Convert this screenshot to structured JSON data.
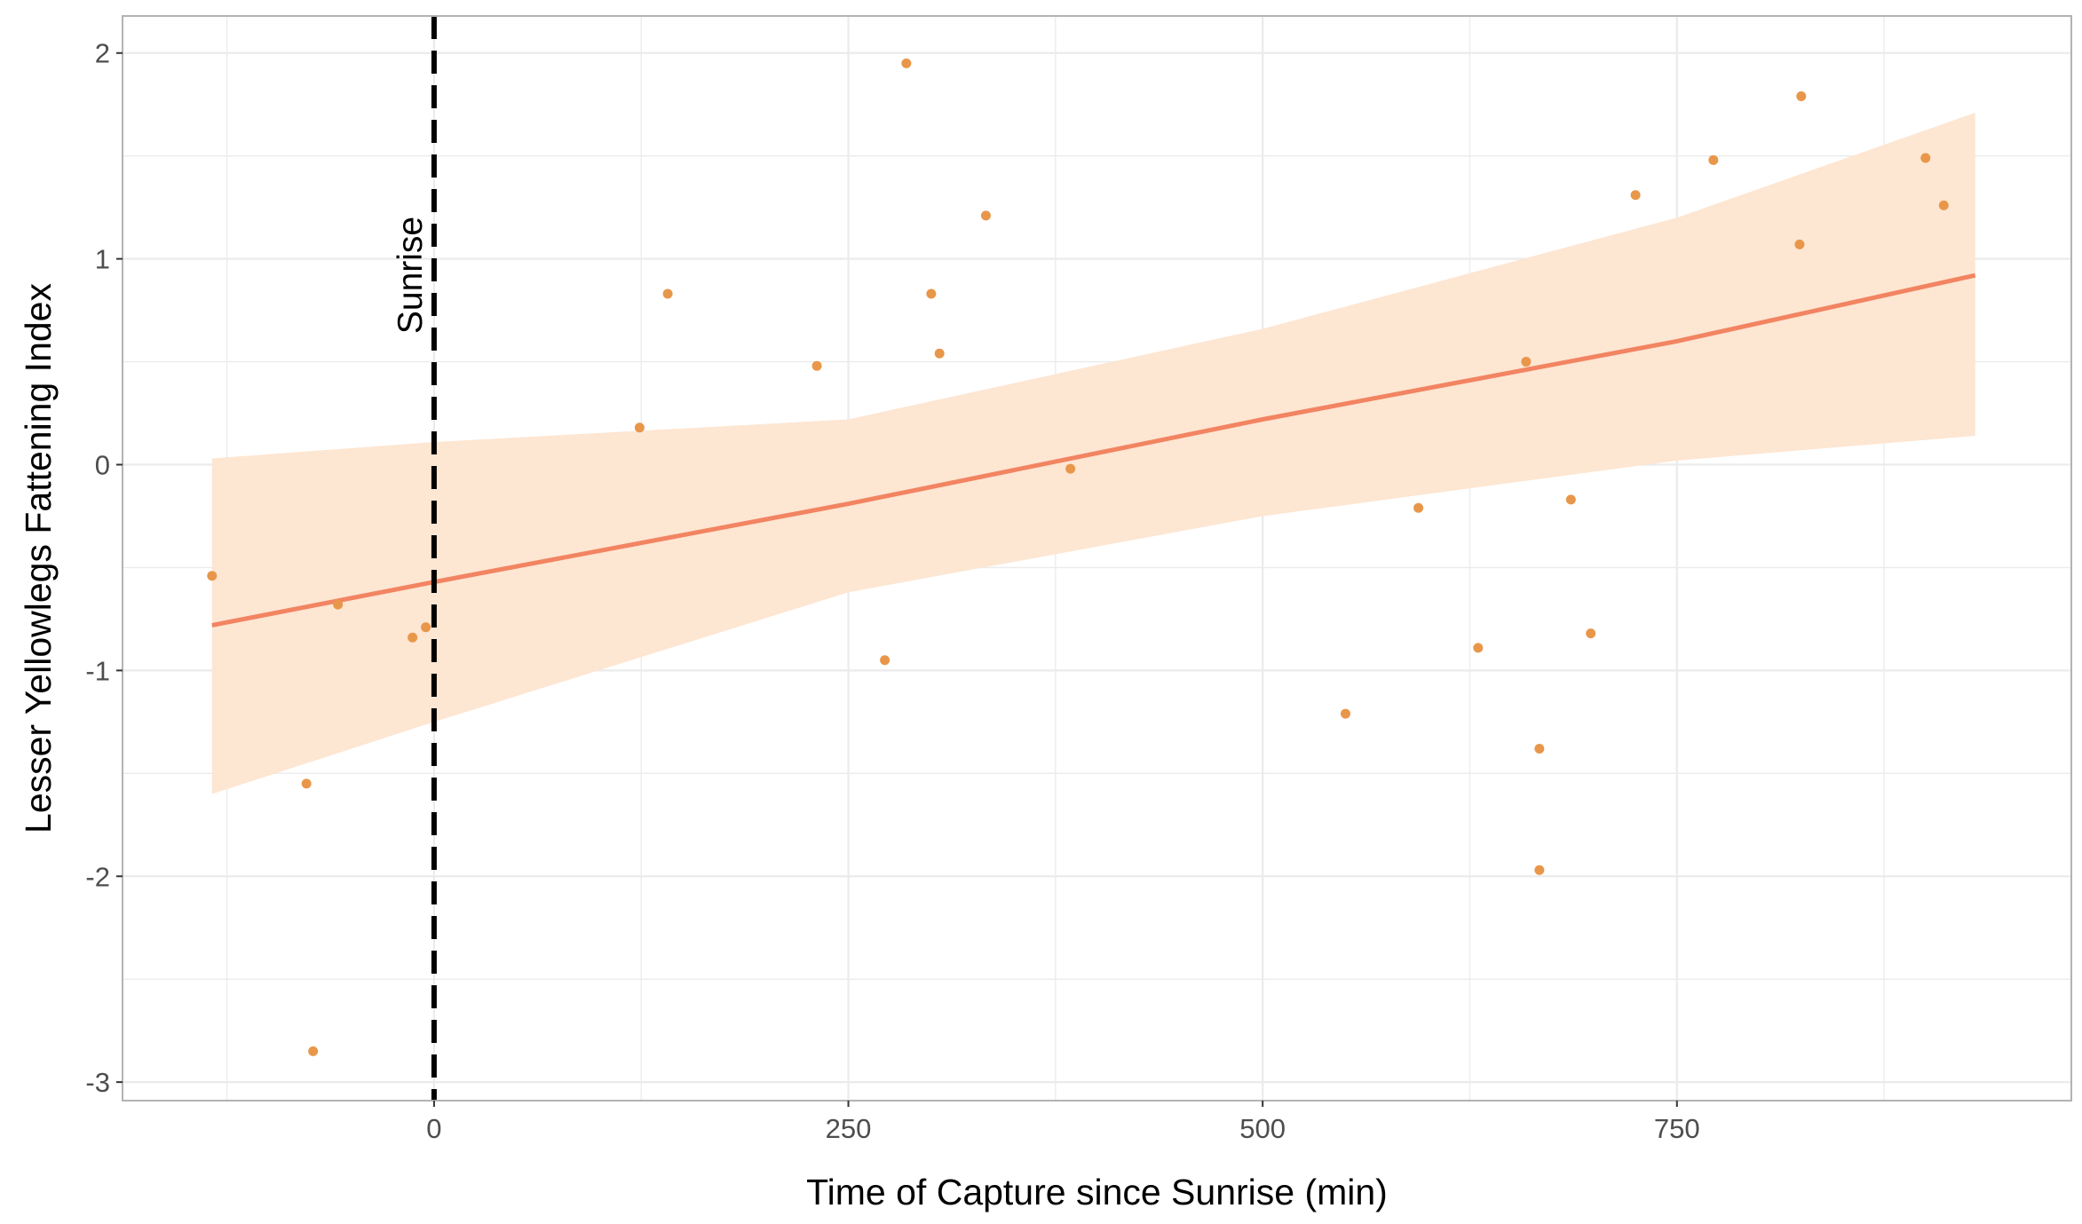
{
  "chart_data": {
    "type": "scatter",
    "xlabel": "Time of Capture since Sunrise (min)",
    "ylabel": "Lesser Yellowlegs Fattening Index",
    "xlim": [
      -188,
      988
    ],
    "ylim": [
      -3.09,
      2.18
    ],
    "x_ticks": [
      0,
      250,
      500,
      750
    ],
    "x_tick_labels": [
      "0",
      "250",
      "500",
      "750"
    ],
    "x_minor_ticks": [
      -125,
      125,
      375,
      625,
      875
    ],
    "y_ticks": [
      -3,
      -2,
      -1,
      0,
      1,
      2
    ],
    "y_tick_labels": [
      "-3",
      "-2",
      "-1",
      "0",
      "1",
      "2"
    ],
    "y_minor_ticks": [
      -2.5,
      -1.5,
      -0.5,
      0.5,
      1.5
    ],
    "grid": true,
    "vline": {
      "x": 0,
      "style": "dashed",
      "color": "#000000",
      "label": "Sunrise"
    },
    "points": [
      {
        "x": -134,
        "y": -0.54
      },
      {
        "x": -77,
        "y": -1.55
      },
      {
        "x": -73,
        "y": -2.85
      },
      {
        "x": -58,
        "y": -0.68
      },
      {
        "x": -13,
        "y": -0.84
      },
      {
        "x": -5,
        "y": -0.79
      },
      {
        "x": 124,
        "y": 0.18
      },
      {
        "x": 141,
        "y": 0.83
      },
      {
        "x": 231,
        "y": 0.48
      },
      {
        "x": 272,
        "y": -0.95
      },
      {
        "x": 285,
        "y": 1.95
      },
      {
        "x": 300,
        "y": 0.83
      },
      {
        "x": 305,
        "y": 0.54
      },
      {
        "x": 333,
        "y": 1.21
      },
      {
        "x": 384,
        "y": -0.02
      },
      {
        "x": 550,
        "y": -1.21
      },
      {
        "x": 594,
        "y": -0.21
      },
      {
        "x": 630,
        "y": -0.89
      },
      {
        "x": 659,
        "y": 0.5
      },
      {
        "x": 667,
        "y": -1.38
      },
      {
        "x": 667,
        "y": -1.97
      },
      {
        "x": 686,
        "y": -0.17
      },
      {
        "x": 698,
        "y": -0.82
      },
      {
        "x": 725,
        "y": 1.31
      },
      {
        "x": 772,
        "y": 1.48
      },
      {
        "x": 824,
        "y": 1.07
      },
      {
        "x": 825,
        "y": 1.79
      },
      {
        "x": 900,
        "y": 1.49
      },
      {
        "x": 911,
        "y": 1.26
      }
    ],
    "fit": {
      "x": [
        -134,
        0,
        250,
        500,
        750,
        930
      ],
      "y": [
        -0.78,
        -0.57,
        -0.19,
        0.22,
        0.6,
        0.92
      ],
      "lower": [
        -1.6,
        -1.25,
        -0.62,
        -0.25,
        0.02,
        0.14
      ],
      "upper": [
        0.03,
        0.11,
        0.22,
        0.66,
        1.2,
        1.71
      ]
    },
    "colors": {
      "points": "#e8974a",
      "fit_line": "#f28462",
      "ribbon": "#fde6d2",
      "grid": "#ebebeb",
      "panel_border": "#b3b3b3"
    }
  }
}
